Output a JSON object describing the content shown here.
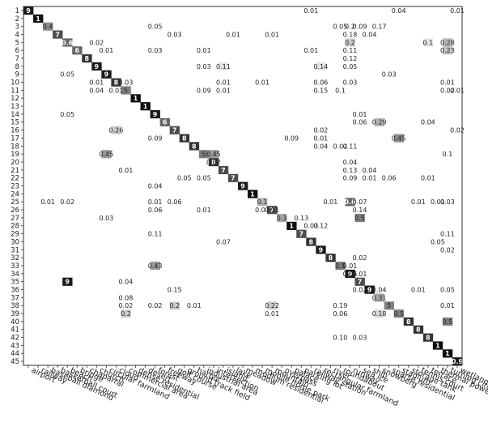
{
  "chart_data": {
    "type": "heatmap",
    "title": "",
    "xlabel": "",
    "ylabel": "",
    "grid": false,
    "colormap": {
      "low": "#ffffff",
      "high": "#000000"
    },
    "row_labels": [
      "1",
      "2",
      "3",
      "4",
      "5",
      "6",
      "7",
      "8",
      "9",
      "10",
      "11",
      "12",
      "13",
      "14",
      "15",
      "16",
      "17",
      "18",
      "19",
      "20",
      "21",
      "22",
      "23",
      "24",
      "25",
      "26",
      "27",
      "28",
      "29",
      "30",
      "31",
      "32",
      "33",
      "34",
      "35",
      "36",
      "37",
      "38",
      "39",
      "40",
      "41",
      "42",
      "43",
      "44",
      "45"
    ],
    "x_labels": [
      "airport",
      "railway",
      "baseball diamond",
      "basketball court",
      "beach",
      "bridge",
      "chaparral",
      "church",
      "circular farmland",
      "cloud",
      "commercial area",
      "dense residential",
      "desert",
      "forest",
      "freeway",
      "golf course",
      "ground track field",
      "harbor",
      "industrial area",
      "intersection",
      "island",
      "lake",
      "meadow",
      "medium residential",
      "mobile home park",
      "mountain",
      "overpass",
      "palace",
      "parking lot",
      "railway station",
      "rectangular farmland",
      "river",
      "roundabout",
      "runway",
      "sea ice",
      "ship",
      "snowberg",
      "sparse residential",
      "stadium",
      "storage tank",
      "tennis court",
      "terrace",
      "thermal power station",
      "turning circle",
      "wetland"
    ],
    "diagonal": [
      [
        "9",
        "0.9"
      ],
      [
        "1",
        "0.93"
      ],
      [
        "0.4",
        "0.45"
      ],
      [
        "7",
        "0.7"
      ],
      [
        "0.6",
        "0.6"
      ],
      [
        "6",
        "0.6"
      ],
      [
        "8",
        "0.8"
      ],
      [
        "9",
        "0.9"
      ],
      [
        "9",
        "0.9"
      ],
      [
        "8",
        "0.8"
      ],
      [
        "5",
        "0.5"
      ],
      [
        "1",
        "0.95"
      ],
      [
        "1",
        "0.95"
      ],
      [
        "9",
        "0.9"
      ],
      [
        "6",
        "0.6"
      ],
      [
        "7",
        "0.7"
      ],
      [
        "8",
        "0.8"
      ],
      [
        "8",
        "0.8"
      ],
      [
        "5",
        "0.5"
      ],
      [
        "8",
        "0.8"
      ],
      [
        "7",
        "0.7"
      ],
      [
        "7",
        "0.7"
      ],
      [
        "9",
        "0.9"
      ],
      [
        "1",
        "0.95"
      ],
      [
        "0.1",
        "0.3"
      ],
      [
        "7",
        "0.7"
      ],
      [
        "0.3",
        "0.35"
      ],
      [
        "1",
        "0.95"
      ],
      [
        "7",
        "0.7"
      ],
      [
        "8",
        "0.8"
      ],
      [
        "9",
        "0.9"
      ],
      [
        "8",
        "0.8"
      ],
      [
        "0.5",
        "0.5"
      ],
      [
        "9",
        "0.9"
      ],
      [
        "7",
        "0.7"
      ],
      [
        "9",
        "0.9"
      ],
      [
        "0.31",
        "0.35"
      ],
      [
        "5",
        "0.5"
      ],
      [
        "0.5",
        "0.5"
      ],
      [
        "8",
        "0.8"
      ],
      [
        "8",
        "0.8"
      ],
      [
        "8",
        "0.8"
      ],
      [
        "1",
        "0.95"
      ],
      [
        "1",
        "0.95"
      ],
      [
        "0.9",
        "0.9"
      ]
    ],
    "cells": [
      [
        0,
        29,
        "0.01",
        0
      ],
      [
        0,
        38,
        "0.04",
        0
      ],
      [
        0,
        44,
        "0.01",
        0
      ],
      [
        2,
        13,
        "0.05",
        0
      ],
      [
        2,
        32,
        "0.05",
        0
      ],
      [
        2,
        33,
        "0.2",
        0
      ],
      [
        2,
        34,
        "0.09",
        0
      ],
      [
        2,
        36,
        "0.17",
        0
      ],
      [
        3,
        15,
        "0.03",
        0
      ],
      [
        3,
        21,
        "0.01",
        0
      ],
      [
        3,
        25,
        "0.01",
        0
      ],
      [
        3,
        33,
        "0.18",
        0
      ],
      [
        3,
        35,
        "0.04",
        0
      ],
      [
        4,
        7,
        "0.02",
        0
      ],
      [
        4,
        33,
        "0.2",
        0.2
      ],
      [
        4,
        41,
        "0.1",
        0.1
      ],
      [
        4,
        43,
        "0.28",
        0.28
      ],
      [
        5,
        8,
        "0.01",
        0
      ],
      [
        5,
        13,
        "0.03",
        0
      ],
      [
        5,
        18,
        "0.01",
        0
      ],
      [
        5,
        29,
        "0.01",
        0
      ],
      [
        5,
        33,
        "0.11",
        0
      ],
      [
        5,
        43,
        "0.23",
        0.23
      ],
      [
        6,
        33,
        "0.12",
        0
      ],
      [
        7,
        18,
        "0.03",
        0
      ],
      [
        7,
        20,
        "0.11",
        0.1
      ],
      [
        7,
        30,
        "0.14",
        0.1
      ],
      [
        7,
        33,
        "0.05",
        0
      ],
      [
        8,
        4,
        "0.05",
        0
      ],
      [
        8,
        37,
        "0.03",
        0
      ],
      [
        9,
        7,
        "0.01",
        0
      ],
      [
        9,
        10,
        "0.03",
        0
      ],
      [
        9,
        20,
        "0.01",
        0
      ],
      [
        9,
        24,
        "0.01",
        0
      ],
      [
        9,
        30,
        "0.06",
        0
      ],
      [
        9,
        33,
        "0.03",
        0
      ],
      [
        9,
        43,
        "0.01",
        0
      ],
      [
        10,
        7,
        "0.04",
        0
      ],
      [
        10,
        9,
        "0.01",
        0
      ],
      [
        10,
        18,
        "0.09",
        0
      ],
      [
        10,
        20,
        "0.01",
        0
      ],
      [
        10,
        30,
        "0.15",
        0
      ],
      [
        10,
        32,
        "0.1",
        0
      ],
      [
        10,
        43,
        "0.02",
        0
      ],
      [
        10,
        44,
        "0.01",
        0
      ],
      [
        13,
        4,
        "0.05",
        0
      ],
      [
        13,
        34,
        "0.01",
        0
      ],
      [
        14,
        34,
        "0.06",
        0
      ],
      [
        14,
        36,
        "0.29",
        0.29
      ],
      [
        14,
        41,
        "0.04",
        0
      ],
      [
        15,
        9,
        "0.26",
        0.2
      ],
      [
        15,
        30,
        "0.02",
        0
      ],
      [
        15,
        44,
        "0.02",
        0
      ],
      [
        16,
        13,
        "0.09",
        0
      ],
      [
        16,
        27,
        "0.09",
        0
      ],
      [
        16,
        30,
        "0.01",
        0
      ],
      [
        16,
        38,
        "0.45",
        0.45
      ],
      [
        17,
        30,
        "0.04",
        0
      ],
      [
        17,
        32,
        "0.02",
        0
      ],
      [
        17,
        33,
        "0.11",
        0
      ],
      [
        18,
        8,
        "0.45",
        0.4
      ],
      [
        18,
        19,
        "0.45",
        0.4
      ],
      [
        18,
        43,
        "0.1",
        0
      ],
      [
        19,
        19,
        "0.02",
        0
      ],
      [
        19,
        33,
        "0.04",
        0
      ],
      [
        20,
        10,
        "0.01",
        0
      ],
      [
        20,
        33,
        "0.13",
        0
      ],
      [
        20,
        35,
        "0.04",
        0
      ],
      [
        21,
        16,
        "0.05",
        0
      ],
      [
        21,
        18,
        "0.05",
        0
      ],
      [
        21,
        33,
        "0.09",
        0
      ],
      [
        21,
        35,
        "0.01",
        0
      ],
      [
        21,
        37,
        "0.06",
        0
      ],
      [
        21,
        41,
        "0.01",
        0
      ],
      [
        22,
        13,
        "0.04",
        0
      ],
      [
        24,
        2,
        "0.01",
        0
      ],
      [
        24,
        4,
        "0.02",
        0
      ],
      [
        24,
        13,
        "0.01",
        0
      ],
      [
        24,
        15,
        "0.06",
        0
      ],
      [
        24,
        31,
        "0.01",
        0
      ],
      [
        24,
        33,
        "0.6",
        0.6
      ],
      [
        24,
        34,
        "0.07",
        0
      ],
      [
        24,
        40,
        "0.01",
        0
      ],
      [
        24,
        42,
        "0.01",
        0
      ],
      [
        24,
        43,
        "0.03",
        0
      ],
      [
        25,
        13,
        "0.06",
        0
      ],
      [
        25,
        18,
        "0.01",
        0
      ],
      [
        25,
        24,
        "0.01",
        0
      ],
      [
        25,
        25,
        "0.11",
        0
      ],
      [
        25,
        34,
        "0.14",
        0
      ],
      [
        26,
        8,
        "0.03",
        0
      ],
      [
        26,
        28,
        "0.13",
        0
      ],
      [
        26,
        34,
        "0.5",
        0.5
      ],
      [
        27,
        29,
        "0.03",
        0
      ],
      [
        27,
        30,
        "0.12",
        0
      ],
      [
        28,
        13,
        "0.11",
        0
      ],
      [
        28,
        43,
        "0.11",
        0
      ],
      [
        29,
        20,
        "0.07",
        0
      ],
      [
        29,
        42,
        "0.05",
        0
      ],
      [
        30,
        43,
        "0.02",
        0
      ],
      [
        31,
        34,
        "0.02",
        0
      ],
      [
        32,
        13,
        "0.43",
        0.4
      ],
      [
        32,
        33,
        "0.01",
        0
      ],
      [
        33,
        33,
        "0.05",
        0
      ],
      [
        33,
        34,
        "0.01",
        0
      ],
      [
        34,
        4,
        "9",
        0.9
      ],
      [
        34,
        10,
        "0.04",
        0
      ],
      [
        35,
        15,
        "0.15",
        0
      ],
      [
        35,
        34,
        "0.02",
        0
      ],
      [
        35,
        36,
        "0.04",
        0
      ],
      [
        35,
        40,
        "0.01",
        0
      ],
      [
        35,
        43,
        "0.05",
        0
      ],
      [
        36,
        10,
        "0.08",
        0
      ],
      [
        37,
        10,
        "0.02",
        0
      ],
      [
        37,
        13,
        "0.02",
        0
      ],
      [
        37,
        15,
        "0.2",
        0.2
      ],
      [
        37,
        17,
        "0.01",
        0
      ],
      [
        37,
        25,
        "0.22",
        0.2
      ],
      [
        37,
        32,
        "0.19",
        0
      ],
      [
        37,
        43,
        "0.01",
        0
      ],
      [
        38,
        10,
        "0.2",
        0.2
      ],
      [
        38,
        25,
        "0.01",
        0
      ],
      [
        38,
        32,
        "0.06",
        0
      ],
      [
        38,
        36,
        "0.18",
        0.15
      ],
      [
        39,
        43,
        "0.5",
        0.5
      ],
      [
        41,
        32,
        "0.10",
        0
      ],
      [
        41,
        34,
        "0.03",
        0
      ]
    ]
  }
}
